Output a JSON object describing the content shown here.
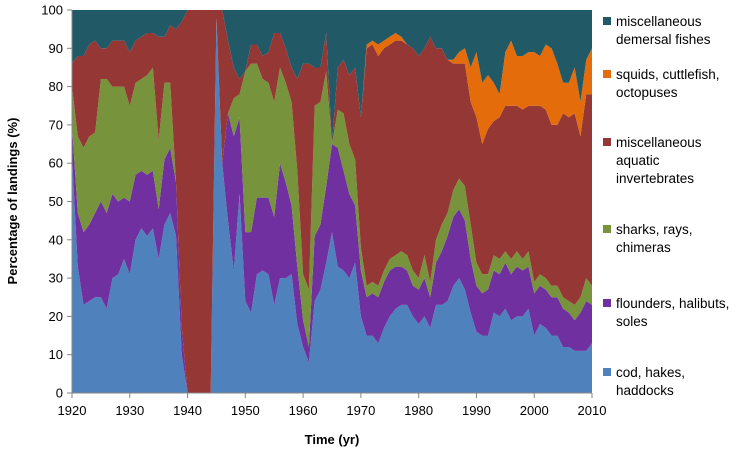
{
  "chart_data": {
    "type": "area",
    "stacked": true,
    "normalized": true,
    "title": "",
    "xlabel": "Time (yr)",
    "ylabel": "Percentage of landings (%)",
    "xlim": [
      1920,
      2010
    ],
    "ylim": [
      0,
      100
    ],
    "xticks": [
      1920,
      1930,
      1940,
      1950,
      1960,
      1970,
      1980,
      1990,
      2000,
      2010
    ],
    "yticks": [
      0,
      10,
      20,
      30,
      40,
      50,
      60,
      70,
      80,
      90,
      100
    ],
    "grid": false,
    "legend_position": "right",
    "x": [
      1920,
      1921,
      1922,
      1923,
      1924,
      1925,
      1926,
      1927,
      1928,
      1929,
      1930,
      1931,
      1932,
      1933,
      1934,
      1935,
      1936,
      1937,
      1938,
      1939,
      1940,
      1941,
      1942,
      1943,
      1944,
      1945,
      1946,
      1947,
      1948,
      1949,
      1950,
      1951,
      1952,
      1953,
      1954,
      1955,
      1956,
      1957,
      1958,
      1959,
      1960,
      1961,
      1962,
      1963,
      1964,
      1965,
      1966,
      1967,
      1968,
      1969,
      1970,
      1971,
      1972,
      1973,
      1974,
      1975,
      1976,
      1977,
      1978,
      1979,
      1980,
      1981,
      1982,
      1983,
      1984,
      1985,
      1986,
      1987,
      1988,
      1989,
      1990,
      1991,
      1992,
      1993,
      1994,
      1995,
      1996,
      1997,
      1998,
      1999,
      2000,
      2001,
      2002,
      2003,
      2004,
      2005,
      2006,
      2007,
      2008,
      2009,
      2010
    ],
    "series": [
      {
        "name": "cod, hakes, haddocks",
        "color": "#4f81bd",
        "values": [
          62,
          33,
          23,
          24,
          25,
          25,
          22,
          30,
          31,
          35,
          31,
          40,
          43,
          41,
          43,
          35,
          44,
          47,
          41,
          10,
          0,
          0,
          0,
          0,
          0,
          98,
          60,
          45,
          32,
          52,
          24,
          21,
          31,
          32,
          31,
          23,
          30,
          30,
          31,
          18,
          12,
          8,
          24,
          27,
          34,
          42,
          33,
          32,
          30,
          34,
          20,
          15,
          15,
          13,
          17,
          20,
          22,
          23,
          23,
          20,
          18,
          20,
          17,
          23,
          23,
          24,
          28,
          30,
          27,
          21,
          16,
          15,
          15,
          21,
          20,
          22,
          19,
          20,
          20,
          22,
          15,
          18,
          17,
          15,
          15,
          12,
          12,
          11,
          11,
          11,
          13
        ]
      },
      {
        "name": "flounders, halibuts, soles",
        "color": "#7030a0",
        "values": [
          8,
          14,
          19,
          20,
          22,
          25,
          25,
          22,
          19,
          16,
          19,
          17,
          15,
          16,
          15,
          13,
          17,
          17,
          14,
          7,
          0,
          0,
          0,
          0,
          0,
          0,
          0,
          28,
          35,
          20,
          18,
          21,
          20,
          19,
          20,
          23,
          30,
          25,
          18,
          15,
          7,
          4,
          17,
          17,
          20,
          23,
          31,
          26,
          22,
          15,
          12,
          10,
          11,
          12,
          12,
          12,
          11,
          10,
          9,
          8,
          9,
          10,
          8,
          11,
          14,
          17,
          18,
          18,
          18,
          14,
          12,
          11,
          12,
          11,
          11,
          12,
          12,
          13,
          12,
          11,
          11,
          10,
          10,
          10,
          10,
          10,
          9,
          8,
          10,
          13,
          10
        ]
      },
      {
        "name": "sharks, rays, chimeras",
        "color": "#77933c",
        "values": [
          10,
          20,
          22,
          23,
          21,
          32,
          35,
          28,
          30,
          29,
          25,
          24,
          24,
          26,
          27,
          18,
          20,
          17,
          0,
          0,
          0,
          0,
          0,
          0,
          0,
          0,
          0,
          0,
          10,
          6,
          42,
          44,
          35,
          31,
          30,
          30,
          25,
          26,
          27,
          25,
          12,
          15,
          34,
          32,
          30,
          0,
          10,
          15,
          13,
          12,
          6,
          3,
          3,
          3,
          3,
          3,
          3,
          4,
          4,
          4,
          3,
          6,
          4,
          6,
          7,
          6,
          7,
          8,
          9,
          9,
          6,
          5,
          4,
          4,
          4,
          3,
          4,
          4,
          3,
          4,
          3,
          3,
          3,
          3,
          3,
          3,
          3,
          4,
          4,
          6,
          5
        ]
      },
      {
        "name": "miscellaneous aquatic invertebrates",
        "color": "#953735",
        "values": [
          6,
          21,
          24,
          24,
          24,
          8,
          8,
          12,
          12,
          12,
          14,
          11,
          11,
          11,
          9,
          27,
          12,
          15,
          40,
          80,
          100,
          100,
          100,
          100,
          100,
          2,
          40,
          19,
          8,
          4,
          0,
          5,
          5,
          6,
          8,
          18,
          9,
          9,
          9,
          24,
          55,
          59,
          10,
          9,
          10,
          0,
          11,
          14,
          18,
          24,
          34,
          62,
          62,
          60,
          58,
          56,
          56,
          55,
          55,
          58,
          58,
          54,
          64,
          50,
          46,
          40,
          33,
          30,
          32,
          32,
          38,
          34,
          38,
          35,
          37,
          38,
          40,
          38,
          39,
          38,
          46,
          44,
          44,
          42,
          42,
          48,
          48,
          50,
          42,
          48,
          50
        ]
      },
      {
        "name": "squids, cuttlefish, octopuses",
        "color": "#e46c0a",
        "values": [
          0,
          0,
          0,
          0,
          0,
          0,
          0,
          0,
          0,
          0,
          0,
          0,
          0,
          0,
          0,
          0,
          0,
          0,
          0,
          0,
          0,
          0,
          0,
          0,
          0,
          0,
          0,
          0,
          0,
          0,
          0,
          0,
          0,
          0,
          0,
          0,
          0,
          0,
          0,
          0,
          0,
          0,
          0,
          0,
          0,
          0,
          0,
          0,
          0,
          0,
          0,
          1,
          1,
          3,
          2,
          2,
          2,
          1,
          0,
          0,
          0,
          0,
          0,
          0,
          0,
          0,
          1,
          3,
          4,
          9,
          17,
          16,
          14,
          10,
          6,
          14,
          17,
          13,
          14,
          14,
          14,
          13,
          17,
          20,
          16,
          8,
          9,
          12,
          9,
          9,
          12
        ]
      },
      {
        "name": "miscellaneous demersal fishes",
        "color": "#215967",
        "values": [
          14,
          12,
          12,
          9,
          8,
          10,
          10,
          8,
          8,
          8,
          11,
          8,
          7,
          6,
          6,
          7,
          7,
          4,
          5,
          3,
          0,
          0,
          0,
          0,
          0,
          0,
          0,
          8,
          15,
          18,
          16,
          9,
          9,
          12,
          11,
          6,
          6,
          10,
          15,
          18,
          14,
          14,
          15,
          15,
          6,
          35,
          15,
          13,
          17,
          15,
          28,
          9,
          8,
          9,
          8,
          7,
          6,
          7,
          9,
          10,
          12,
          10,
          7,
          10,
          10,
          13,
          13,
          11,
          10,
          15,
          11,
          19,
          17,
          19,
          22,
          11,
          8,
          12,
          12,
          11,
          11,
          12,
          9,
          10,
          14,
          19,
          19,
          15,
          24,
          13,
          10
        ]
      }
    ]
  },
  "legend_labels": [
    [
      "miscellaneous",
      "demersal fishes"
    ],
    [
      "squids, cuttlefish,",
      "octopuses"
    ],
    [
      "miscellaneous",
      "aquatic",
      "invertebrates"
    ],
    [
      "sharks, rays,",
      "chimeras"
    ],
    [
      "flounders, halibuts,",
      "soles"
    ],
    [
      "cod, hakes,",
      "haddocks"
    ]
  ],
  "legend_colors": [
    "#215967",
    "#e46c0a",
    "#953735",
    "#77933c",
    "#7030a0",
    "#4f81bd"
  ]
}
